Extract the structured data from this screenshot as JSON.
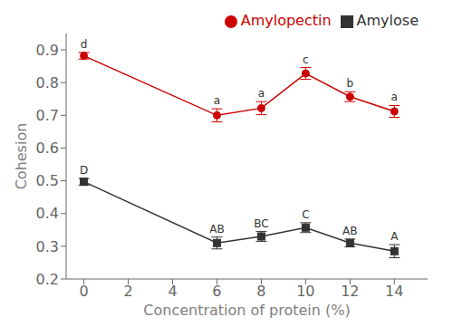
{
  "chart_data": {
    "type": "line",
    "xlabel": "Concentration of protein (%)",
    "ylabel": "Cohesion",
    "x": [
      0,
      6,
      8,
      10,
      12,
      14
    ],
    "series": [
      {
        "name": "Amylose",
        "color": "#333333",
        "marker": "square",
        "values": [
          0.497,
          0.31,
          0.33,
          0.357,
          0.31,
          0.285
        ],
        "error": [
          0.01,
          0.018,
          0.015,
          0.015,
          0.012,
          0.02
        ],
        "labels": [
          "D",
          "AB",
          "BC",
          "C",
          "AB",
          "A"
        ]
      },
      {
        "name": "Amylopectin",
        "color": "#cc0000",
        "marker": "circle",
        "values": [
          0.882,
          0.7,
          0.722,
          0.828,
          0.757,
          0.712
        ],
        "error": [
          0.01,
          0.02,
          0.02,
          0.018,
          0.015,
          0.018
        ],
        "labels": [
          "d",
          "a",
          "a",
          "c",
          "b",
          "a"
        ]
      }
    ],
    "xlim": [
      -0.8,
      15.5
    ],
    "ylim": [
      0.2,
      0.95
    ],
    "xticks": [
      0,
      2,
      4,
      6,
      8,
      10,
      12,
      14
    ],
    "yticks": [
      0.2,
      0.3,
      0.4,
      0.5,
      0.6,
      0.7,
      0.8,
      0.9
    ],
    "legend": "upper right",
    "grid": false
  }
}
